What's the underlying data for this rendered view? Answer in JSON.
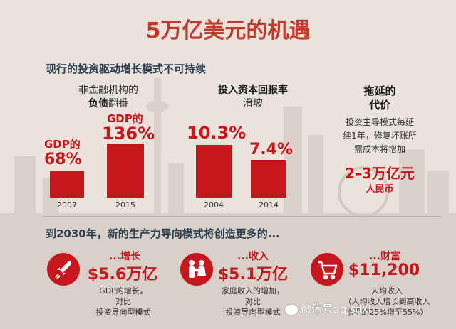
{
  "title": "5万亿美元的机遇",
  "heading1": "现行的投资驱动增长模式不可持续",
  "heading2": "到2030年，新的生产力导向模式将创造更多的...",
  "debt": {
    "caption_line1": "非金融机构的",
    "caption_bold": "负债",
    "caption_tail": "翻番",
    "bars": [
      {
        "label_top": "GDP的",
        "label_value": "68%",
        "year": "2007",
        "value": 68
      },
      {
        "label_top": "GDP的",
        "label_value": "136%",
        "year": "2015",
        "value": 136
      }
    ]
  },
  "roi": {
    "caption_line1": "投入资本回报率",
    "caption_line2": "滑坡",
    "bars": [
      {
        "label_value": "10.3%",
        "year": "2004",
        "value": 10.3
      },
      {
        "label_value": "7.4%",
        "year": "2014",
        "value": 7.4
      }
    ]
  },
  "delay": {
    "title_line1": "拖延的",
    "title_line2": "代价",
    "desc": [
      "投资主导模式每延",
      "续1年，修复坏账所",
      "需成本将增加"
    ],
    "amount": "2–3万亿元",
    "unit": "人民币"
  },
  "benefits": [
    {
      "label": "...增长",
      "amount": "$5.6万亿",
      "desc": [
        "GDP的增长，",
        "对比",
        "投资导向型模式"
      ],
      "icon": "rocket-icon"
    },
    {
      "label": "...收入",
      "amount": "$5.1万亿",
      "desc": [
        "家庭收入的增加，",
        "对比",
        "投资导向型模式"
      ],
      "icon": "family-icon"
    },
    {
      "label": "...财富",
      "amount": "$11,200",
      "desc": [
        "人均收入",
        "（人均收入增长到高收入",
        "水平的25%增至55%）"
      ],
      "icon": "shopping-cart-icon"
    }
  ],
  "watermark": "微信号: qjsdxi",
  "colors": {
    "accent": "#c7161c",
    "title": "#c0392b",
    "background": "#eae3dc"
  }
}
